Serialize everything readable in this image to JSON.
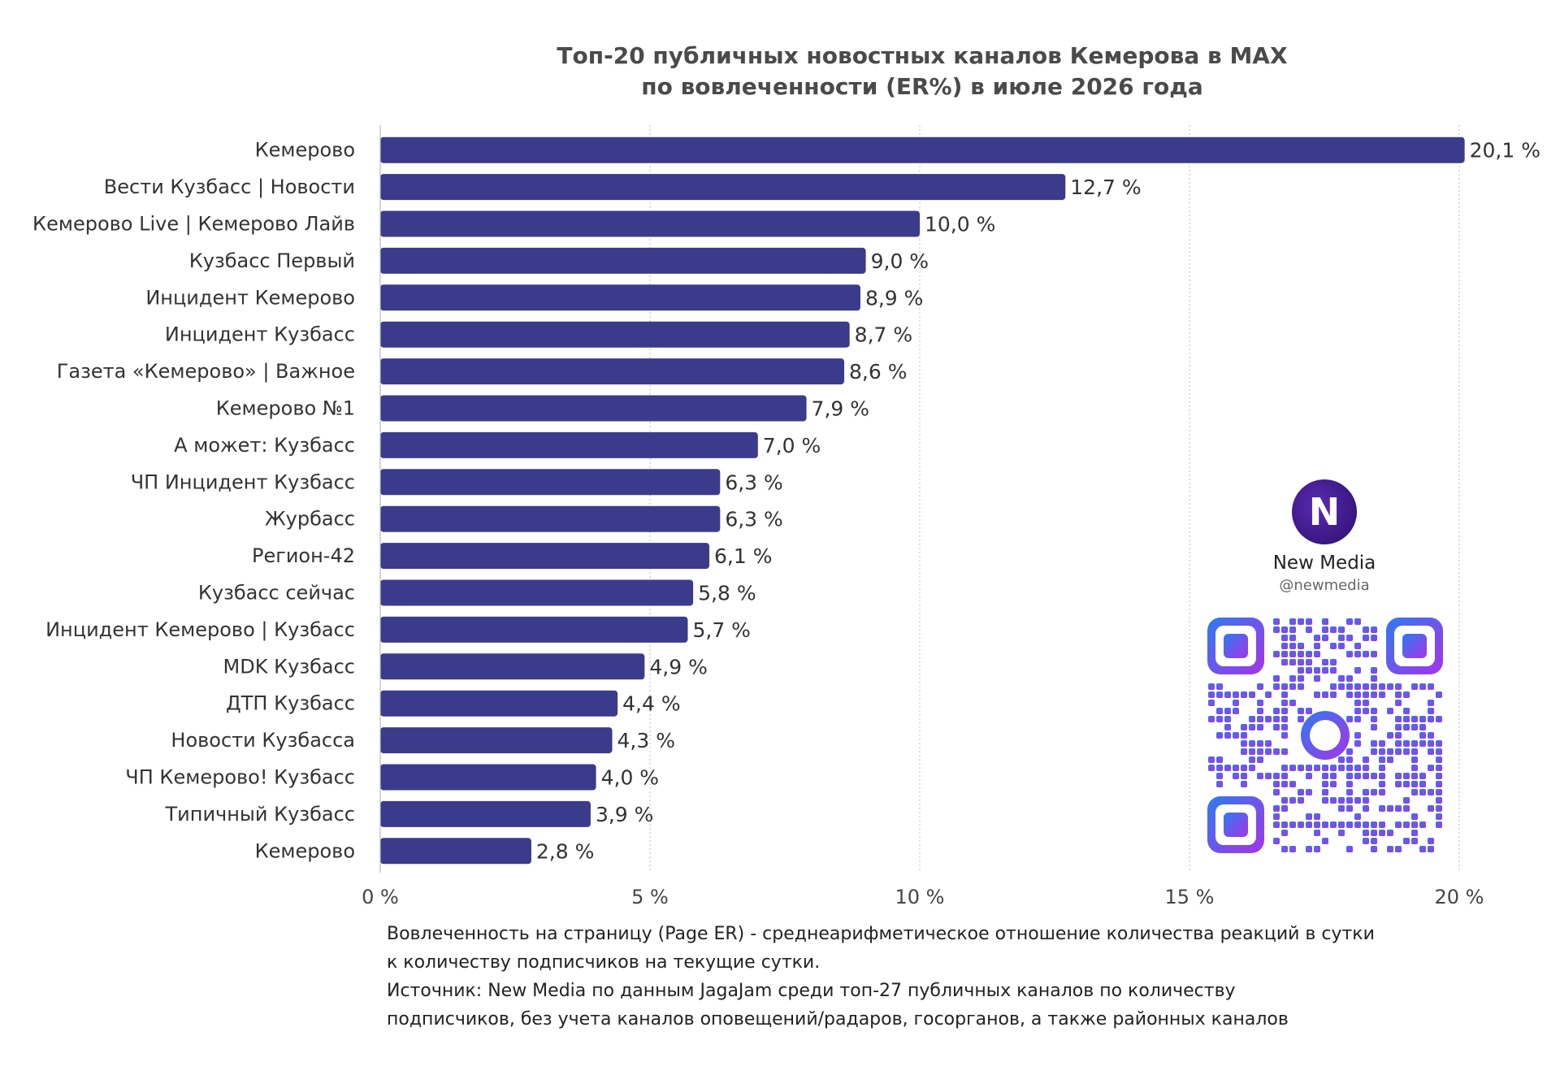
{
  "chart_data": {
    "type": "bar",
    "orientation": "horizontal",
    "title": "Топ-20 публичных новостных каналов Кемерова в MAX\nпо вовлеченности (ER%) в июле 2026 года",
    "categories": [
      "Кемерово",
      "Вести Кузбасс | Новости",
      "Кемерово Live | Кемерово Лайв",
      "Кузбасс Первый",
      "Инцидент Кемерово",
      "Инцидент Кузбасс",
      "Газета «Кемерово» | Важное",
      "Кемерово №1",
      "А может: Кузбасс",
      "ЧП Инцидент Кузбасс",
      "Журбасс",
      "Регион-42",
      "Кузбасс сейчас",
      "Инцидент Кемерово | Кузбасс",
      "MDK Кузбасс",
      "ДТП Кузбасс",
      "Новости Кузбасса",
      "ЧП Кемерово! Кузбасс",
      "Типичный Кузбасс",
      "Кемерово"
    ],
    "values": [
      20.1,
      12.7,
      10.0,
      9.0,
      8.9,
      8.7,
      8.6,
      7.9,
      7.0,
      6.3,
      6.3,
      6.1,
      5.8,
      5.7,
      4.9,
      4.4,
      4.3,
      4.0,
      3.9,
      2.8
    ],
    "value_labels": [
      "20,1 %",
      "12,7 %",
      "10,0 %",
      "9,0 %",
      "8,9 %",
      "8,7 %",
      "8,6 %",
      "7,9 %",
      "7,0 %",
      "6,3 %",
      "6,3 %",
      "6,1 %",
      "5,8 %",
      "5,7 %",
      "4,9 %",
      "4,4 %",
      "4,3 %",
      "4,0 %",
      "3,9 %",
      "2,8 %"
    ],
    "xlim": [
      0,
      20
    ],
    "xticks": [
      0,
      5,
      10,
      15,
      20
    ],
    "xtick_labels": [
      "0 %",
      "5 %",
      "10 %",
      "15 %",
      "20 %"
    ],
    "grid": "vertical dotted",
    "bar_color": "#3b3b8c"
  },
  "title_lines": [
    "Топ-20 публичных новостных каналов Кемерова в MAX",
    "по вовлеченности (ER%) в июле 2026 года"
  ],
  "brand": {
    "logo_letter": "N",
    "name": "New Media",
    "handle": "@newmedia"
  },
  "footnote": [
    "Вовлеченность на страницу (Page ER) - среднеарифметическое отношение количества реакций в сутки",
    "к количеству подписчиков на текущие сутки.",
    "Источник: New Media по данным JagaJam среди топ-27 публичных каналов по количеству",
    "подписчиков, без учета каналов оповещений/радаров, госорганов, а также районных каналов"
  ]
}
